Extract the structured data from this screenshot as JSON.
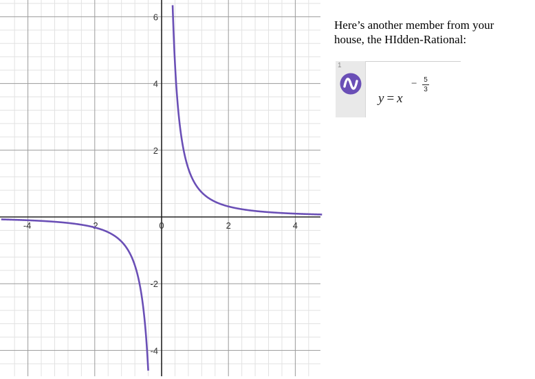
{
  "caption": {
    "line1": "Here’s another member from your",
    "line2": "house, the HIdden-Rational:"
  },
  "expression": {
    "index": "1",
    "icon": "desmos-wave-icon",
    "icon_color": "#6a4fb6",
    "lhs": "y",
    "equals": "=",
    "base": "x",
    "exp_sign": "−",
    "exp_numerator": "5",
    "exp_denominator": "3"
  },
  "chart_data": {
    "type": "line",
    "function": "y = x^(-5/3)",
    "xlim": [
      -4.8,
      4.8
    ],
    "ylim": [
      -4.8,
      6.4
    ],
    "grid": true,
    "x_ticks": [
      -4,
      -2,
      0,
      2,
      4
    ],
    "x_tick_labels": [
      "-4",
      "-2",
      "0",
      "2",
      "4"
    ],
    "y_ticks": [
      -4,
      -2,
      2,
      4,
      6
    ],
    "y_tick_labels": [
      "-4",
      "-2",
      "2",
      "4",
      "6"
    ],
    "series": [
      {
        "color": "#6a4fb6",
        "x": [
          -4.8,
          -4,
          -3,
          -2,
          -1.5,
          -1,
          -0.8,
          -0.6,
          -0.5,
          -0.45,
          -0.4
        ],
        "y": [
          -0.073,
          -0.099,
          -0.16,
          -0.315,
          -0.509,
          -1.0,
          -1.45,
          -2.34,
          -3.17,
          -3.78,
          -4.6
        ]
      },
      {
        "color": "#6a4fb6",
        "x": [
          0.33,
          0.4,
          0.45,
          0.5,
          0.6,
          0.8,
          1,
          1.5,
          2,
          3,
          4,
          4.8
        ],
        "y": [
          6.35,
          4.6,
          3.78,
          3.17,
          2.34,
          1.45,
          1.0,
          0.509,
          0.315,
          0.16,
          0.099,
          0.073
        ]
      }
    ]
  }
}
